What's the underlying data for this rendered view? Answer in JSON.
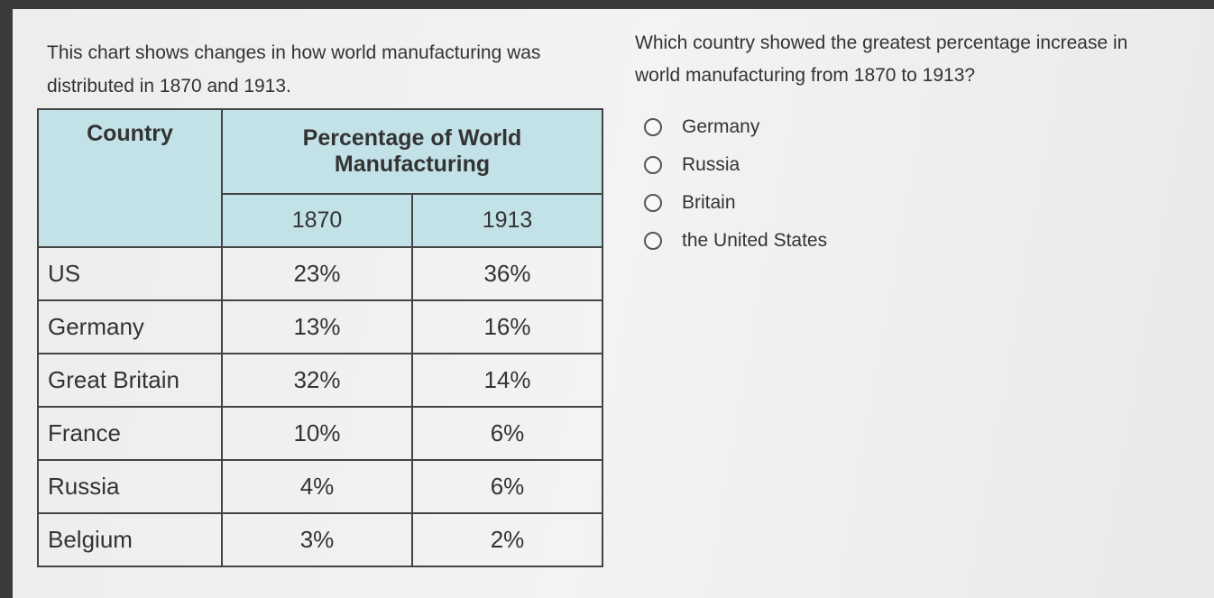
{
  "intro": "This chart shows changes in how world manufacturing was distributed in 1870 and 1913.",
  "table": {
    "header": {
      "country": "Country",
      "group": "Percentage of World Manufacturing",
      "years": [
        "1870",
        "1913"
      ]
    },
    "rows": [
      [
        "US",
        "23%",
        "36%"
      ],
      [
        "Germany",
        "13%",
        "16%"
      ],
      [
        "Great Britain",
        "32%",
        "14%"
      ],
      [
        "France",
        "10%",
        "6%"
      ],
      [
        "Russia",
        "4%",
        "6%"
      ],
      [
        "Belgium",
        "3%",
        "2%"
      ]
    ]
  },
  "question": {
    "text": "Which country showed the greatest percentage increase in world manufacturing from 1870 to 1913?",
    "options": [
      "Germany",
      "Russia",
      "Britain",
      "the United States"
    ]
  }
}
